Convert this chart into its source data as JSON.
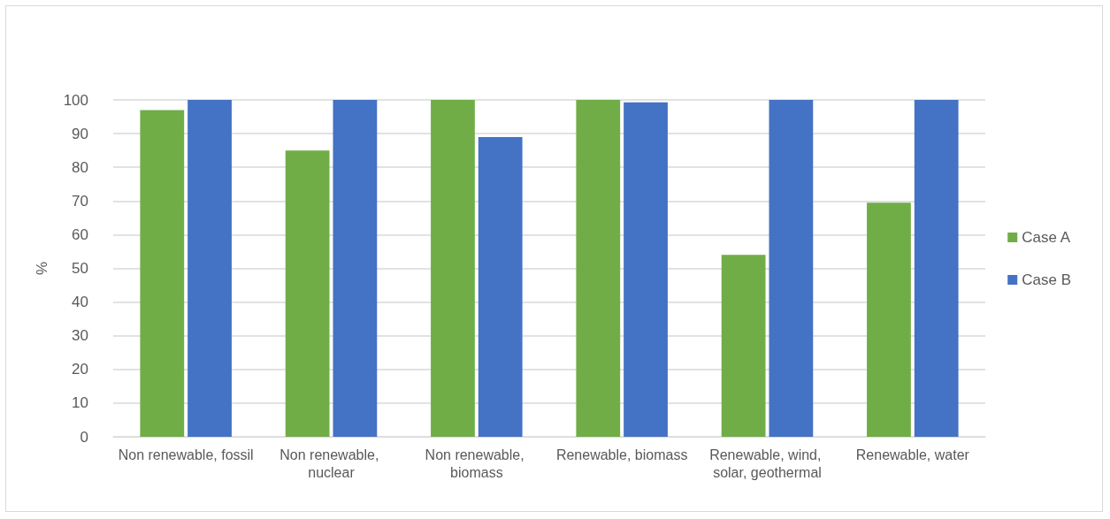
{
  "chart_data": {
    "type": "bar",
    "categories": [
      "Non renewable, fossil",
      "Non renewable, nuclear",
      "Non renewable, biomass",
      "Renewable, biomass",
      "Renewable, wind, solar, geothermal",
      "Renewable, water"
    ],
    "series": [
      {
        "name": "Case A",
        "color": "#70ad47",
        "values": [
          97,
          85,
          100,
          100,
          54,
          69.5
        ]
      },
      {
        "name": "Case B",
        "color": "#4472c4",
        "values": [
          100,
          100,
          89,
          99.3,
          100,
          100
        ]
      }
    ],
    "ylabel": "%",
    "ylim": [
      0,
      100
    ],
    "yticks": [
      0,
      10,
      20,
      30,
      40,
      50,
      60,
      70,
      80,
      90,
      100
    ],
    "grid": "y",
    "legend": "right"
  }
}
